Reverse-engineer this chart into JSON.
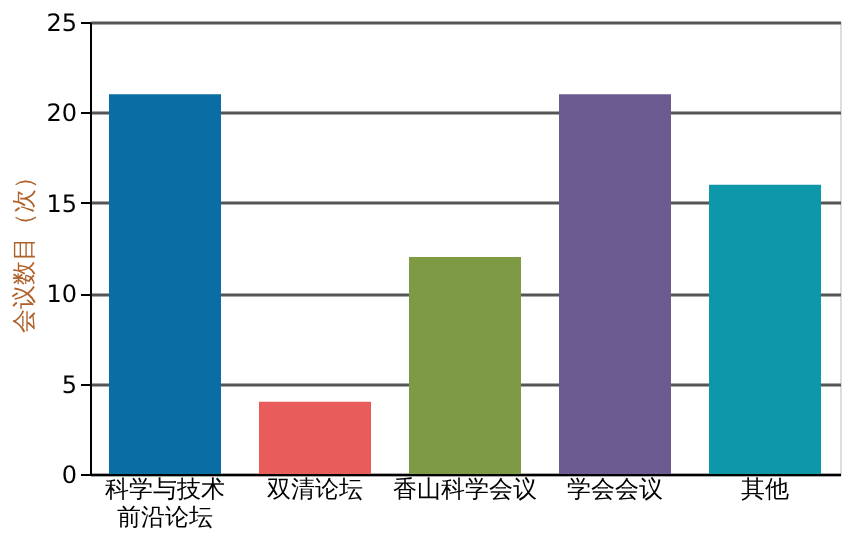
{
  "chart_data": {
    "type": "bar",
    "ylabel": "会议数目（次）",
    "categories": [
      "科学与技术前沿论坛",
      "双清论坛",
      "香山科学会议",
      "学会会议",
      "其他"
    ],
    "values": [
      21,
      4,
      12,
      21,
      16
    ],
    "colors": [
      "#0a6ea5",
      "#e85c5c",
      "#7f9a45",
      "#6b5b91",
      "#0e97a8"
    ],
    "ylim": [
      0,
      25
    ],
    "yticks": [
      0,
      5,
      10,
      15,
      20,
      25
    ],
    "grid": "y"
  }
}
